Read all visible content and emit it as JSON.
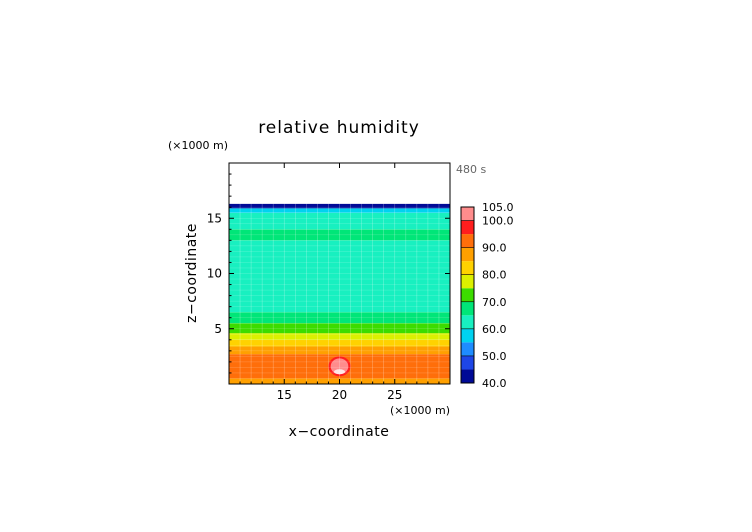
{
  "chart_data": {
    "type": "heatmap",
    "title": "relative humidity",
    "xlabel": "x−coordinate",
    "ylabel": "z−coordinate",
    "x_unit": "(×1000 m)",
    "y_unit": "(×1000 m)",
    "time_label": "480 s",
    "xlim": [
      10,
      30
    ],
    "ylim": [
      0,
      20
    ],
    "x_ticks": [
      15,
      20,
      25
    ],
    "y_ticks": [
      5,
      10,
      15
    ],
    "grid": true,
    "colorbar": {
      "placement": "right",
      "range": [
        40,
        105
      ],
      "tick_labels": [
        "105.0",
        "100.0",
        "90.0",
        "80.0",
        "70.0",
        "60.0",
        "50.0",
        "40.0"
      ],
      "tick_values": [
        105,
        100,
        90,
        80,
        70,
        60,
        50,
        40
      ],
      "levels": [
        {
          "min": 40,
          "max": 45,
          "color": "#000a96"
        },
        {
          "min": 45,
          "max": 50,
          "color": "#1e46e6"
        },
        {
          "min": 50,
          "max": 55,
          "color": "#1e8cff"
        },
        {
          "min": 55,
          "max": 60,
          "color": "#00d2f0"
        },
        {
          "min": 60,
          "max": 65,
          "color": "#18f0c0"
        },
        {
          "min": 65,
          "max": 70,
          "color": "#00e678"
        },
        {
          "min": 70,
          "max": 75,
          "color": "#3cdc00"
        },
        {
          "min": 75,
          "max": 80,
          "color": "#dcf000"
        },
        {
          "min": 80,
          "max": 85,
          "color": "#ffd200"
        },
        {
          "min": 85,
          "max": 90,
          "color": "#ffa000"
        },
        {
          "min": 90,
          "max": 95,
          "color": "#ff6e0a"
        },
        {
          "min": 95,
          "max": 100,
          "color": "#ff1e1e"
        },
        {
          "min": 100,
          "max": 105,
          "color": "#ff8c8c"
        }
      ]
    },
    "field_bands": [
      {
        "z0": 0.0,
        "z1": 0.5,
        "value": 85
      },
      {
        "z0": 0.5,
        "z1": 2.7,
        "value": 90
      },
      {
        "z0": 2.7,
        "z1": 3.4,
        "value": 85
      },
      {
        "z0": 3.4,
        "z1": 4.0,
        "value": 80
      },
      {
        "z0": 4.0,
        "z1": 4.6,
        "value": 75
      },
      {
        "z0": 4.6,
        "z1": 5.5,
        "value": 70
      },
      {
        "z0": 5.5,
        "z1": 6.5,
        "value": 65
      },
      {
        "z0": 6.5,
        "z1": 13.0,
        "value": 60
      },
      {
        "z0": 13.0,
        "z1": 14.0,
        "value": 65
      },
      {
        "z0": 14.0,
        "z1": 15.5,
        "value": 60
      },
      {
        "z0": 15.5,
        "z1": 15.9,
        "value": 55
      },
      {
        "z0": 15.9,
        "z1": 16.3,
        "value": 40
      }
    ],
    "bubble": {
      "x": 20.0,
      "z": 1.6,
      "rx": 1.0,
      "rz": 0.9,
      "value": 100
    }
  }
}
